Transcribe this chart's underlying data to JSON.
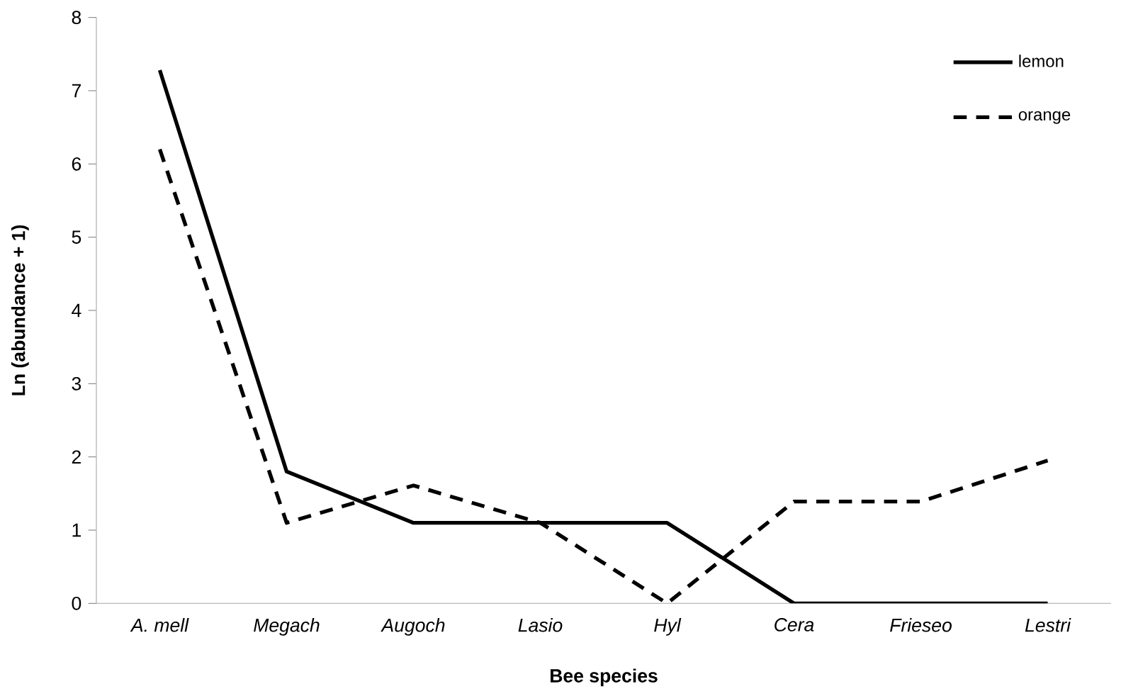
{
  "chart_data": {
    "type": "line",
    "xlabel": "Bee species",
    "ylabel": "Ln (abundance + 1)",
    "categories": [
      "A. mell",
      "Megach",
      "Augoch",
      "Lasio",
      "Hyl",
      "Cera",
      "Frieseo",
      "Lestri"
    ],
    "series": [
      {
        "name": "lemon",
        "color": "#000000",
        "line_style": "solid",
        "values": [
          7.28,
          1.8,
          1.1,
          1.1,
          1.1,
          0,
          0,
          0
        ]
      },
      {
        "name": "orange",
        "color": "#000000",
        "line_style": "dashed",
        "values": [
          6.2,
          1.1,
          1.61,
          1.1,
          0,
          1.39,
          1.39,
          1.95
        ]
      }
    ],
    "ylim": [
      0,
      8
    ],
    "yticks": [
      0,
      1,
      2,
      3,
      4,
      5,
      6,
      7,
      8
    ],
    "grid": false,
    "legend": "top right",
    "marker": "none"
  }
}
